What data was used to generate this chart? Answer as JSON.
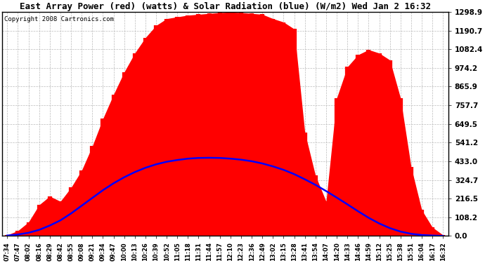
{
  "title": "East Array Power (red) (watts) & Solar Radiation (blue) (W/m2) Wed Jan 2 16:32",
  "copyright": "Copyright 2008 Cartronics.com",
  "yticks": [
    0.0,
    108.2,
    216.5,
    324.7,
    433.0,
    541.2,
    649.5,
    757.7,
    865.9,
    974.2,
    1082.4,
    1190.7,
    1298.9
  ],
  "ymax": 1298.9,
  "ymin": 0.0,
  "bg_color": "#ffffff",
  "plot_bg_color": "#ffffff",
  "grid_color": "#bbbbbb",
  "xtick_labels": [
    "07:34",
    "07:47",
    "08:02",
    "08:16",
    "08:29",
    "08:42",
    "08:55",
    "09:08",
    "09:21",
    "09:34",
    "09:47",
    "10:00",
    "10:13",
    "10:26",
    "10:39",
    "10:52",
    "11:05",
    "11:18",
    "11:31",
    "11:44",
    "11:57",
    "12:10",
    "12:23",
    "12:36",
    "12:49",
    "13:02",
    "13:15",
    "13:28",
    "13:41",
    "13:54",
    "14:07",
    "14:20",
    "14:33",
    "14:46",
    "14:59",
    "15:12",
    "15:25",
    "15:38",
    "15:51",
    "16:04",
    "16:17",
    "16:32"
  ],
  "power": [
    5,
    30,
    80,
    180,
    230,
    200,
    280,
    380,
    520,
    680,
    820,
    950,
    1060,
    1150,
    1220,
    1260,
    1270,
    1280,
    1285,
    1290,
    1295,
    1298,
    1295,
    1290,
    1285,
    1260,
    1240,
    1200,
    600,
    350,
    200,
    800,
    980,
    1050,
    1080,
    1060,
    1020,
    800,
    400,
    150,
    50,
    5
  ],
  "solar": [
    2,
    8,
    18,
    35,
    60,
    90,
    130,
    175,
    220,
    265,
    305,
    340,
    370,
    395,
    415,
    430,
    440,
    448,
    452,
    453,
    452,
    448,
    442,
    433,
    420,
    403,
    383,
    358,
    328,
    296,
    260,
    222,
    183,
    143,
    105,
    72,
    45,
    25,
    12,
    5,
    2,
    0
  ],
  "title_fontsize": 9,
  "copyright_fontsize": 6.5,
  "ytick_fontsize": 7.5,
  "xtick_fontsize": 6.0
}
